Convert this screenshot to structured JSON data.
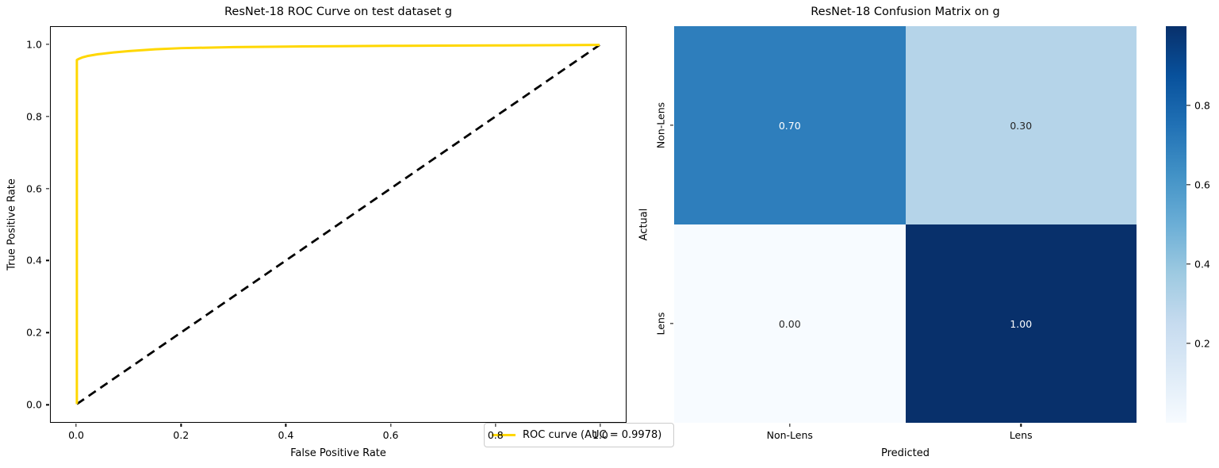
{
  "figure": {
    "background": "#ffffff"
  },
  "roc": {
    "title": "ResNet-18 ROC Curve on test dataset g",
    "xlabel": "False Positive Rate",
    "ylabel": "True Positive Rate",
    "xticks": [
      "0.0",
      "0.2",
      "0.4",
      "0.6",
      "0.8",
      "1.0"
    ],
    "yticks": [
      "0.0",
      "0.2",
      "0.4",
      "0.6",
      "0.8",
      "1.0"
    ],
    "legend_label": "ROC curve (AUC = 0.9978)",
    "auc": "0.9978",
    "curve_color": "#ffd700",
    "diagonal_color": "#000000"
  },
  "cm": {
    "title": "ResNet-18 Confusion Matrix on g",
    "xlabel": "Predicted",
    "ylabel": "Actual",
    "row_labels": [
      "Non-Lens",
      "Lens"
    ],
    "col_labels": [
      "Non-Lens",
      "Lens"
    ],
    "cells": [
      [
        {
          "label": "0.70",
          "bg": "#2e7ebc",
          "fg": "#ffffff"
        },
        {
          "label": "0.30",
          "bg": "#b5d4e9",
          "fg": "#262626"
        }
      ],
      [
        {
          "label": "0.00",
          "bg": "#f7fbff",
          "fg": "#262626"
        },
        {
          "label": "1.00",
          "bg": "#08306b",
          "fg": "#ffffff"
        }
      ]
    ],
    "colorbar": {
      "tick_labels": [
        "0.8",
        "0.6",
        "0.4",
        "0.2"
      ],
      "tick_values": [
        0.8,
        0.6,
        0.4,
        0.2
      ],
      "gradient_top_to_bottom": [
        "#08306b",
        "#08519c",
        "#2171b5",
        "#4292c6",
        "#6baed6",
        "#9ecae1",
        "#c6dbef",
        "#deebf7",
        "#f7fbff"
      ]
    }
  },
  "chart_data": [
    {
      "type": "line",
      "title": "ResNet-18 ROC Curve on test dataset g",
      "xlabel": "False Positive Rate",
      "ylabel": "True Positive Rate",
      "xlim": [
        -0.05,
        1.05
      ],
      "ylim": [
        -0.05,
        1.05
      ],
      "xticks": [
        0.0,
        0.2,
        0.4,
        0.6,
        0.8,
        1.0
      ],
      "yticks": [
        0.0,
        0.2,
        0.4,
        0.6,
        0.8,
        1.0
      ],
      "grid": false,
      "legend_position": "lower right",
      "series": [
        {
          "name": "ROC curve (AUC = 0.9978)",
          "color": "#ffd700",
          "style": "solid",
          "x": [
            0.0,
            0.0,
            0.002,
            0.005,
            0.01,
            0.02,
            0.04,
            0.07,
            0.1,
            0.15,
            0.2,
            0.3,
            0.4,
            0.5,
            0.6,
            0.7,
            0.8,
            0.9,
            1.0
          ],
          "y": [
            0.0,
            0.958,
            0.96,
            0.962,
            0.965,
            0.969,
            0.974,
            0.979,
            0.983,
            0.988,
            0.991,
            0.994,
            0.9955,
            0.9966,
            0.9974,
            0.998,
            0.9986,
            0.9992,
            1.0
          ]
        },
        {
          "name": "chance-diagonal",
          "color": "#000000",
          "style": "dashed",
          "x": [
            0.0,
            1.0
          ],
          "y": [
            0.0,
            1.0
          ]
        }
      ]
    },
    {
      "type": "heatmap",
      "title": "ResNet-18 Confusion Matrix on g",
      "xlabel": "Predicted",
      "ylabel": "Actual",
      "x_categories": [
        "Non-Lens",
        "Lens"
      ],
      "y_categories": [
        "Non-Lens",
        "Lens"
      ],
      "values": [
        [
          0.7,
          0.3
        ],
        [
          0.0,
          1.0
        ]
      ],
      "colormap": "Blues",
      "vmin": 0.0,
      "vmax": 1.0,
      "colorbar_ticks": [
        0.2,
        0.4,
        0.6,
        0.8
      ],
      "legend_position": "colorbar-right"
    }
  ]
}
